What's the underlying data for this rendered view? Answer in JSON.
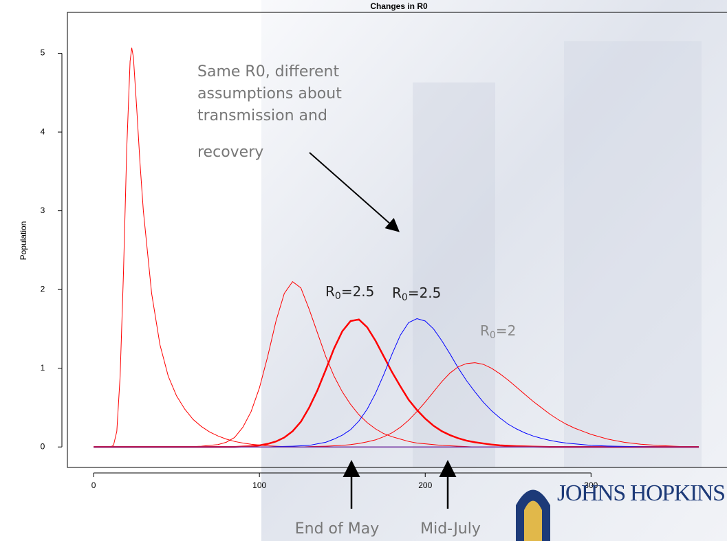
{
  "chart_data": {
    "type": "line",
    "title": "Changes in R0",
    "y_label": "Population",
    "x": [
      0,
      5,
      10,
      12,
      14,
      16,
      18,
      20,
      22,
      23,
      24,
      26,
      28,
      30,
      35,
      40,
      45,
      50,
      55,
      60,
      65,
      70,
      75,
      80,
      85,
      90,
      95,
      100,
      105,
      110,
      115,
      120,
      125,
      130,
      135,
      140,
      145,
      150,
      155,
      160,
      165,
      170,
      175,
      180,
      185,
      190,
      195,
      200,
      205,
      210,
      215,
      220,
      225,
      230,
      235,
      240,
      245,
      250,
      255,
      260,
      265,
      270,
      275,
      280,
      285,
      290,
      295,
      300,
      310,
      320,
      330,
      340,
      350,
      355,
      365
    ],
    "series": [
      {
        "color": "#ff0000",
        "width": 1,
        "values": [
          0,
          0,
          0,
          0.02,
          0.2,
          0.9,
          2.2,
          3.8,
          4.9,
          5.07,
          4.95,
          4.3,
          3.6,
          3.0,
          1.95,
          1.3,
          0.9,
          0.65,
          0.48,
          0.35,
          0.26,
          0.19,
          0.14,
          0.1,
          0.07,
          0.05,
          0.035,
          0.025,
          0.015,
          0.01,
          0.005,
          0,
          0,
          0,
          0,
          0,
          0,
          0,
          0,
          0,
          0,
          0,
          0,
          0,
          0,
          0,
          0,
          0,
          0,
          0,
          0,
          0,
          0,
          0,
          0,
          0,
          0,
          0,
          0,
          0,
          0,
          0,
          0,
          0,
          0,
          0,
          0,
          0,
          0,
          0,
          0,
          0,
          0,
          0,
          0
        ]
      },
      {
        "color": "#ff0000",
        "width": 1,
        "values": [
          0,
          0,
          0,
          0,
          0,
          0,
          0,
          0,
          0,
          0,
          0,
          0,
          0,
          0,
          0,
          0,
          0,
          0,
          0,
          0.005,
          0.01,
          0.02,
          0.03,
          0.06,
          0.12,
          0.25,
          0.45,
          0.75,
          1.15,
          1.6,
          1.95,
          2.1,
          2.02,
          1.75,
          1.45,
          1.15,
          0.9,
          0.7,
          0.54,
          0.41,
          0.31,
          0.23,
          0.17,
          0.13,
          0.1,
          0.07,
          0.05,
          0.04,
          0.03,
          0.02,
          0.015,
          0.01,
          0.005,
          0,
          0,
          0,
          0,
          0,
          0,
          0,
          0,
          0,
          0,
          0,
          0,
          0,
          0,
          0,
          0,
          0,
          0,
          0,
          0,
          0,
          0
        ]
      },
      {
        "color": "#ff0000",
        "width": 2.5,
        "values": [
          0,
          0,
          0,
          0,
          0,
          0,
          0,
          0,
          0,
          0,
          0,
          0,
          0,
          0,
          0,
          0,
          0,
          0,
          0,
          0,
          0,
          0,
          0,
          0,
          0,
          0.005,
          0.01,
          0.02,
          0.04,
          0.07,
          0.12,
          0.2,
          0.32,
          0.5,
          0.72,
          0.98,
          1.25,
          1.47,
          1.6,
          1.62,
          1.52,
          1.35,
          1.15,
          0.95,
          0.77,
          0.6,
          0.47,
          0.36,
          0.27,
          0.2,
          0.15,
          0.11,
          0.08,
          0.06,
          0.045,
          0.03,
          0.02,
          0.015,
          0.01,
          0.007,
          0.004,
          0.002,
          0,
          0,
          0,
          0,
          0,
          0,
          0,
          0,
          0,
          0,
          0,
          0,
          0
        ]
      },
      {
        "color": "#0000ff",
        "width": 1,
        "values": [
          0,
          0,
          0,
          0,
          0,
          0,
          0,
          0,
          0,
          0,
          0,
          0,
          0,
          0,
          0,
          0,
          0,
          0,
          0,
          0,
          0,
          0,
          0,
          0,
          0,
          0,
          0,
          0,
          0,
          0.005,
          0.007,
          0.01,
          0.015,
          0.02,
          0.04,
          0.06,
          0.1,
          0.15,
          0.22,
          0.33,
          0.48,
          0.68,
          0.92,
          1.18,
          1.42,
          1.58,
          1.63,
          1.6,
          1.5,
          1.35,
          1.18,
          1.0,
          0.84,
          0.7,
          0.57,
          0.46,
          0.37,
          0.29,
          0.23,
          0.18,
          0.14,
          0.11,
          0.085,
          0.065,
          0.05,
          0.04,
          0.03,
          0.02,
          0.012,
          0.007,
          0.004,
          0.002,
          0.001,
          0,
          0
        ]
      },
      {
        "color": "#ff0000",
        "width": 1,
        "values": [
          0,
          0,
          0,
          0,
          0,
          0,
          0,
          0,
          0,
          0,
          0,
          0,
          0,
          0,
          0,
          0,
          0,
          0,
          0,
          0,
          0,
          0,
          0,
          0,
          0,
          0,
          0,
          0,
          0,
          0,
          0,
          0,
          0,
          0.005,
          0.007,
          0.01,
          0.015,
          0.02,
          0.03,
          0.045,
          0.065,
          0.09,
          0.13,
          0.18,
          0.25,
          0.34,
          0.45,
          0.57,
          0.7,
          0.83,
          0.94,
          1.02,
          1.06,
          1.07,
          1.05,
          1.0,
          0.93,
          0.85,
          0.76,
          0.67,
          0.58,
          0.5,
          0.42,
          0.35,
          0.29,
          0.24,
          0.2,
          0.16,
          0.1,
          0.06,
          0.035,
          0.02,
          0.01,
          0.005,
          0
        ]
      },
      {
        "color": "#7030a0",
        "width": 1.5,
        "values": [
          0,
          0,
          0,
          0,
          0,
          0,
          0,
          0,
          0,
          0,
          0,
          0,
          0,
          0,
          0,
          0,
          0,
          0,
          0,
          0,
          0,
          0,
          0,
          0,
          0,
          0,
          0,
          0,
          0,
          0,
          0,
          0,
          0,
          0,
          0,
          0,
          0,
          0,
          0,
          0,
          0,
          0,
          0,
          0,
          0,
          0,
          0,
          0,
          0,
          0,
          0,
          0,
          0,
          0,
          0,
          0,
          0,
          0,
          0,
          0,
          0,
          0,
          0,
          0,
          0,
          0,
          0,
          0,
          0,
          0,
          0,
          0,
          0,
          0,
          0
        ]
      }
    ],
    "xlim": [
      -15.8,
      382
    ],
    "ylim": [
      -0.26,
      5.52
    ],
    "xticks": [
      0,
      100,
      200,
      300
    ],
    "yticks": [
      0,
      1,
      2,
      3,
      4,
      5
    ],
    "annotation": [
      "Same R0, different",
      "assumptions about",
      "transmission and",
      "recovery"
    ],
    "r_labels": [
      {
        "base": "R",
        "sub": "0",
        "rest": "=2.5"
      },
      {
        "base": "R",
        "sub": "0",
        "rest": "=2.5"
      },
      {
        "base": "R",
        "sub": "0",
        "rest": "=2"
      }
    ],
    "time_labels": [
      "End of May",
      "Mid-July"
    ]
  },
  "logo": "JOHNS HOPKINS"
}
